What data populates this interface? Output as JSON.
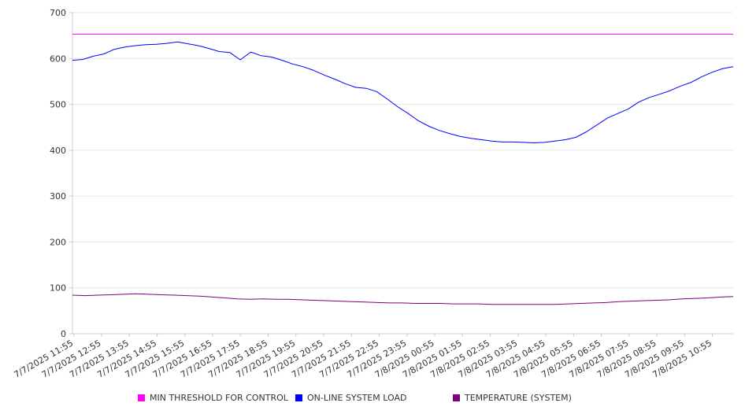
{
  "chart_data": {
    "type": "line",
    "ylim": [
      0,
      700
    ],
    "y_ticks": [
      "0",
      "100",
      "200",
      "300",
      "400",
      "500",
      "600",
      "700"
    ],
    "grid": "horizontal",
    "legend_position": "bottom",
    "x_start": "7/7/2025 11:55",
    "x_step_minutes": 5,
    "x_tick_labels": [
      "7/7/2025 11:55",
      "7/7/2025 12:55",
      "7/7/2025 13:55",
      "7/7/2025 14:55",
      "7/7/2025 15:55",
      "7/7/2025 16:55",
      "7/7/2025 17:55",
      "7/7/2025 18:55",
      "7/7/2025 19:55",
      "7/7/2025 20:55",
      "7/7/2025 21:55",
      "7/7/2025 22:55",
      "7/7/2025 23:55",
      "7/8/2025 00:55",
      "7/8/2025 01:55",
      "7/8/2025 02:55",
      "7/8/2025 03:55",
      "7/8/2025 04:55",
      "7/8/2025 05:55",
      "7/8/2025 06:55",
      "7/8/2025 07:55",
      "7/8/2025 08:55",
      "7/8/2025 09:55",
      "7/8/2025 10:55"
    ],
    "series": [
      {
        "name": "MIN THRESHOLD FOR CONTROL",
        "color": "#ff00ff",
        "values": [
          653,
          653
        ]
      },
      {
        "name": "ON-LINE SYSTEM LOAD",
        "color": "#0000ff",
        "values": [
          596,
          598,
          605,
          610,
          620,
          625,
          628,
          630,
          631,
          633,
          636,
          632,
          628,
          622,
          615,
          613,
          597,
          614,
          606,
          603,
          596,
          588,
          582,
          574,
          564,
          555,
          545,
          537,
          535,
          528,
          512,
          495,
          480,
          464,
          452,
          443,
          436,
          430,
          426,
          423,
          420,
          418,
          418,
          417,
          416,
          417,
          420,
          423,
          428,
          440,
          455,
          470,
          480,
          490,
          505,
          515,
          522,
          530,
          540,
          548,
          560,
          570,
          578,
          582
        ]
      },
      {
        "name": "TEMPERATURE (SYSTEM)",
        "color": "#800080",
        "values": [
          84,
          83,
          84,
          85,
          86,
          87,
          86,
          85,
          84,
          83,
          82,
          80,
          78,
          76,
          75,
          76,
          75,
          75,
          74,
          73,
          72,
          71,
          70,
          69,
          68,
          67,
          67,
          66,
          66,
          66,
          65,
          65,
          65,
          64,
          64,
          64,
          64,
          64,
          64,
          65,
          66,
          67,
          68,
          70,
          71,
          72,
          73,
          74,
          76,
          77,
          78,
          80,
          81
        ]
      }
    ]
  }
}
